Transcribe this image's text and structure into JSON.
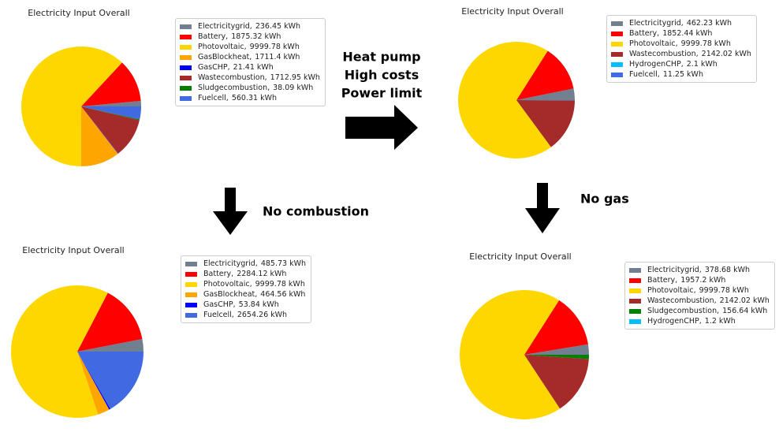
{
  "chart_data": [
    {
      "type": "pie",
      "title": "Electricity Input Overall",
      "categories": [
        "Electricitygrid",
        "Battery",
        "Photovoltaic",
        "GasBlockheat",
        "GasCHP",
        "Wastecombustion",
        "Sludgecombustion",
        "Fuelcell"
      ],
      "values": [
        236.45,
        1875.32,
        9999.78,
        1711.4,
        21.41,
        1712.95,
        38.09,
        560.31
      ],
      "value_labels": [
        "236.45 kWh",
        "1875.32 kWh",
        "9999.78 kWh",
        "1711.4 kWh",
        "21.41 kWh",
        "1712.95 kWh",
        "38.09 kWh",
        "560.31 kWh"
      ],
      "colors": [
        "#708090",
        "#ff0000",
        "#ffd700",
        "#ffa500",
        "#0000ff",
        "#a52a2a",
        "#008000",
        "#4169e1"
      ]
    },
    {
      "type": "pie",
      "title": "Electricity Input Overall",
      "categories": [
        "Electricitygrid",
        "Battery",
        "Photovoltaic",
        "Wastecombustion",
        "HydrogenCHP",
        "Fuelcell"
      ],
      "values": [
        462.23,
        1852.44,
        9999.78,
        2142.02,
        2.1,
        11.25
      ],
      "value_labels": [
        "462.23 kWh",
        "1852.44 kWh",
        "9999.78 kWh",
        "2142.02 kWh",
        "2.1 kWh",
        "11.25 kWh"
      ],
      "colors": [
        "#708090",
        "#ff0000",
        "#ffd700",
        "#a52a2a",
        "#00bfff",
        "#4169e1"
      ]
    },
    {
      "type": "pie",
      "title": "Electricity Input Overall",
      "categories": [
        "Electricitygrid",
        "Battery",
        "Photovoltaic",
        "GasBlockheat",
        "GasCHP",
        "Fuelcell"
      ],
      "values": [
        485.73,
        2284.12,
        9999.78,
        464.56,
        53.84,
        2654.26
      ],
      "value_labels": [
        "485.73 kWh",
        "2284.12 kWh",
        "9999.78 kWh",
        "464.56 kWh",
        "53.84 kWh",
        "2654.26 kWh"
      ],
      "colors": [
        "#708090",
        "#ff0000",
        "#ffd700",
        "#ffa500",
        "#0000ff",
        "#4169e1"
      ]
    },
    {
      "type": "pie",
      "title": "Electricity Input Overall",
      "categories": [
        "Electricitygrid",
        "Battery",
        "Photovoltaic",
        "Wastecombustion",
        "Sludgecombustion",
        "HydrogenCHP"
      ],
      "values": [
        378.68,
        1957.2,
        9999.78,
        2142.02,
        156.64,
        1.2
      ],
      "value_labels": [
        "378.68 kWh",
        "1957.2 kWh",
        "9999.78 kWh",
        "2142.02 kWh",
        "156.64 kWh",
        "1.2 kWh"
      ],
      "colors": [
        "#708090",
        "#ff0000",
        "#ffd700",
        "#a52a2a",
        "#008000",
        "#00bfff"
      ]
    }
  ],
  "annotations": {
    "right_arrow": [
      "Heat pump",
      "High costs",
      "Power limit"
    ],
    "left_down_arrow": "No combustion",
    "right_down_arrow": "No gas"
  }
}
